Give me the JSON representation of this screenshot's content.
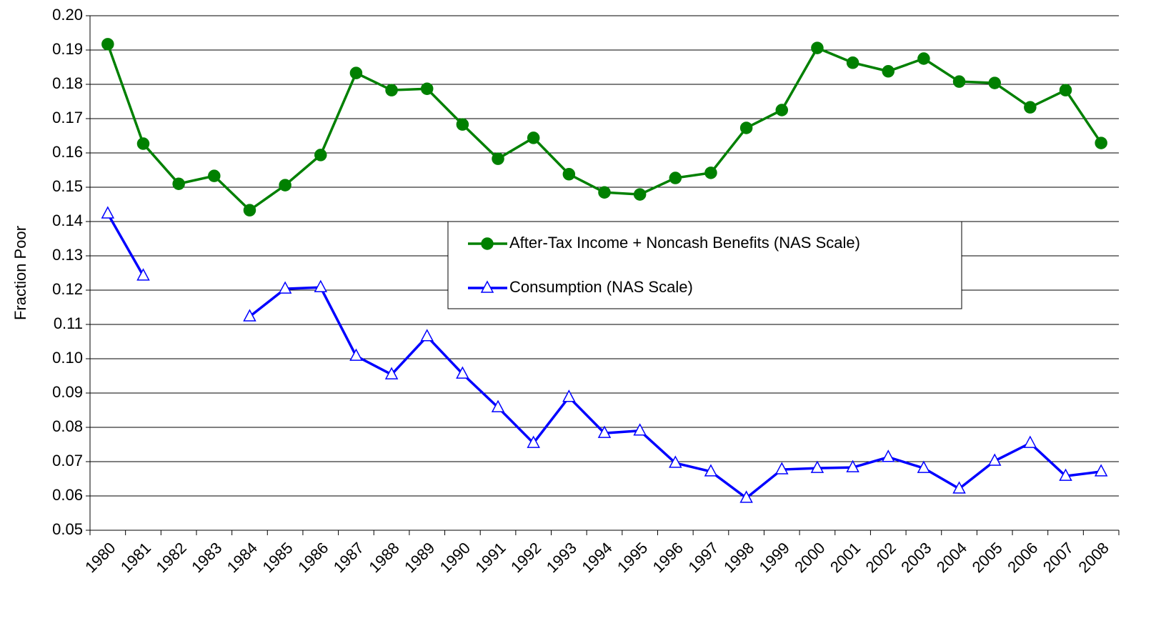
{
  "chart_data": {
    "type": "line",
    "y_label": "Fraction Poor",
    "categories": [
      "1980",
      "1981",
      "1982",
      "1983",
      "1984",
      "1985",
      "1986",
      "1987",
      "1988",
      "1989",
      "1990",
      "1991",
      "1992",
      "1993",
      "1994",
      "1995",
      "1996",
      "1997",
      "1998",
      "1999",
      "2000",
      "2001",
      "2002",
      "2003",
      "2004",
      "2005",
      "2006",
      "2007",
      "2008"
    ],
    "series": [
      {
        "name": "After-Tax Income + Noncash Benefits (NAS Scale)",
        "color": "#008000",
        "marker": "circle",
        "values": [
          0.1917,
          0.1627,
          0.151,
          0.1533,
          0.1433,
          0.1506,
          0.1594,
          0.1833,
          0.1783,
          0.1787,
          0.1683,
          0.1583,
          0.1644,
          0.1538,
          0.1485,
          0.1479,
          0.1527,
          0.1542,
          0.1673,
          0.1725,
          0.1906,
          0.1863,
          0.1838,
          0.1875,
          0.1808,
          0.1804,
          0.1733,
          0.1783,
          0.1629
        ]
      },
      {
        "name": "Consumption (NAS Scale)",
        "color": "#0000ff",
        "marker": "triangle",
        "values": [
          0.1423,
          0.1242,
          null,
          null,
          0.1123,
          0.1204,
          0.1208,
          0.1008,
          0.0954,
          0.1065,
          0.0956,
          0.0858,
          0.0754,
          0.0888,
          0.0783,
          0.079,
          0.0696,
          0.0671,
          0.0594,
          0.0677,
          0.0681,
          0.0683,
          0.0713,
          0.0681,
          0.0621,
          0.0702,
          0.0754,
          0.0658,
          0.0671
        ]
      }
    ],
    "ylim": [
      0.05,
      0.2
    ],
    "yticks": [
      0.05,
      0.06,
      0.07,
      0.08,
      0.09,
      {
        "value": 0.1,
        "label": "0.10"
      },
      0.11,
      0.12,
      0.13,
      0.14,
      0.15,
      0.16,
      0.17,
      0.18,
      0.19,
      {
        "value": 0.2,
        "label": "0.20"
      }
    ],
    "grid": true
  }
}
